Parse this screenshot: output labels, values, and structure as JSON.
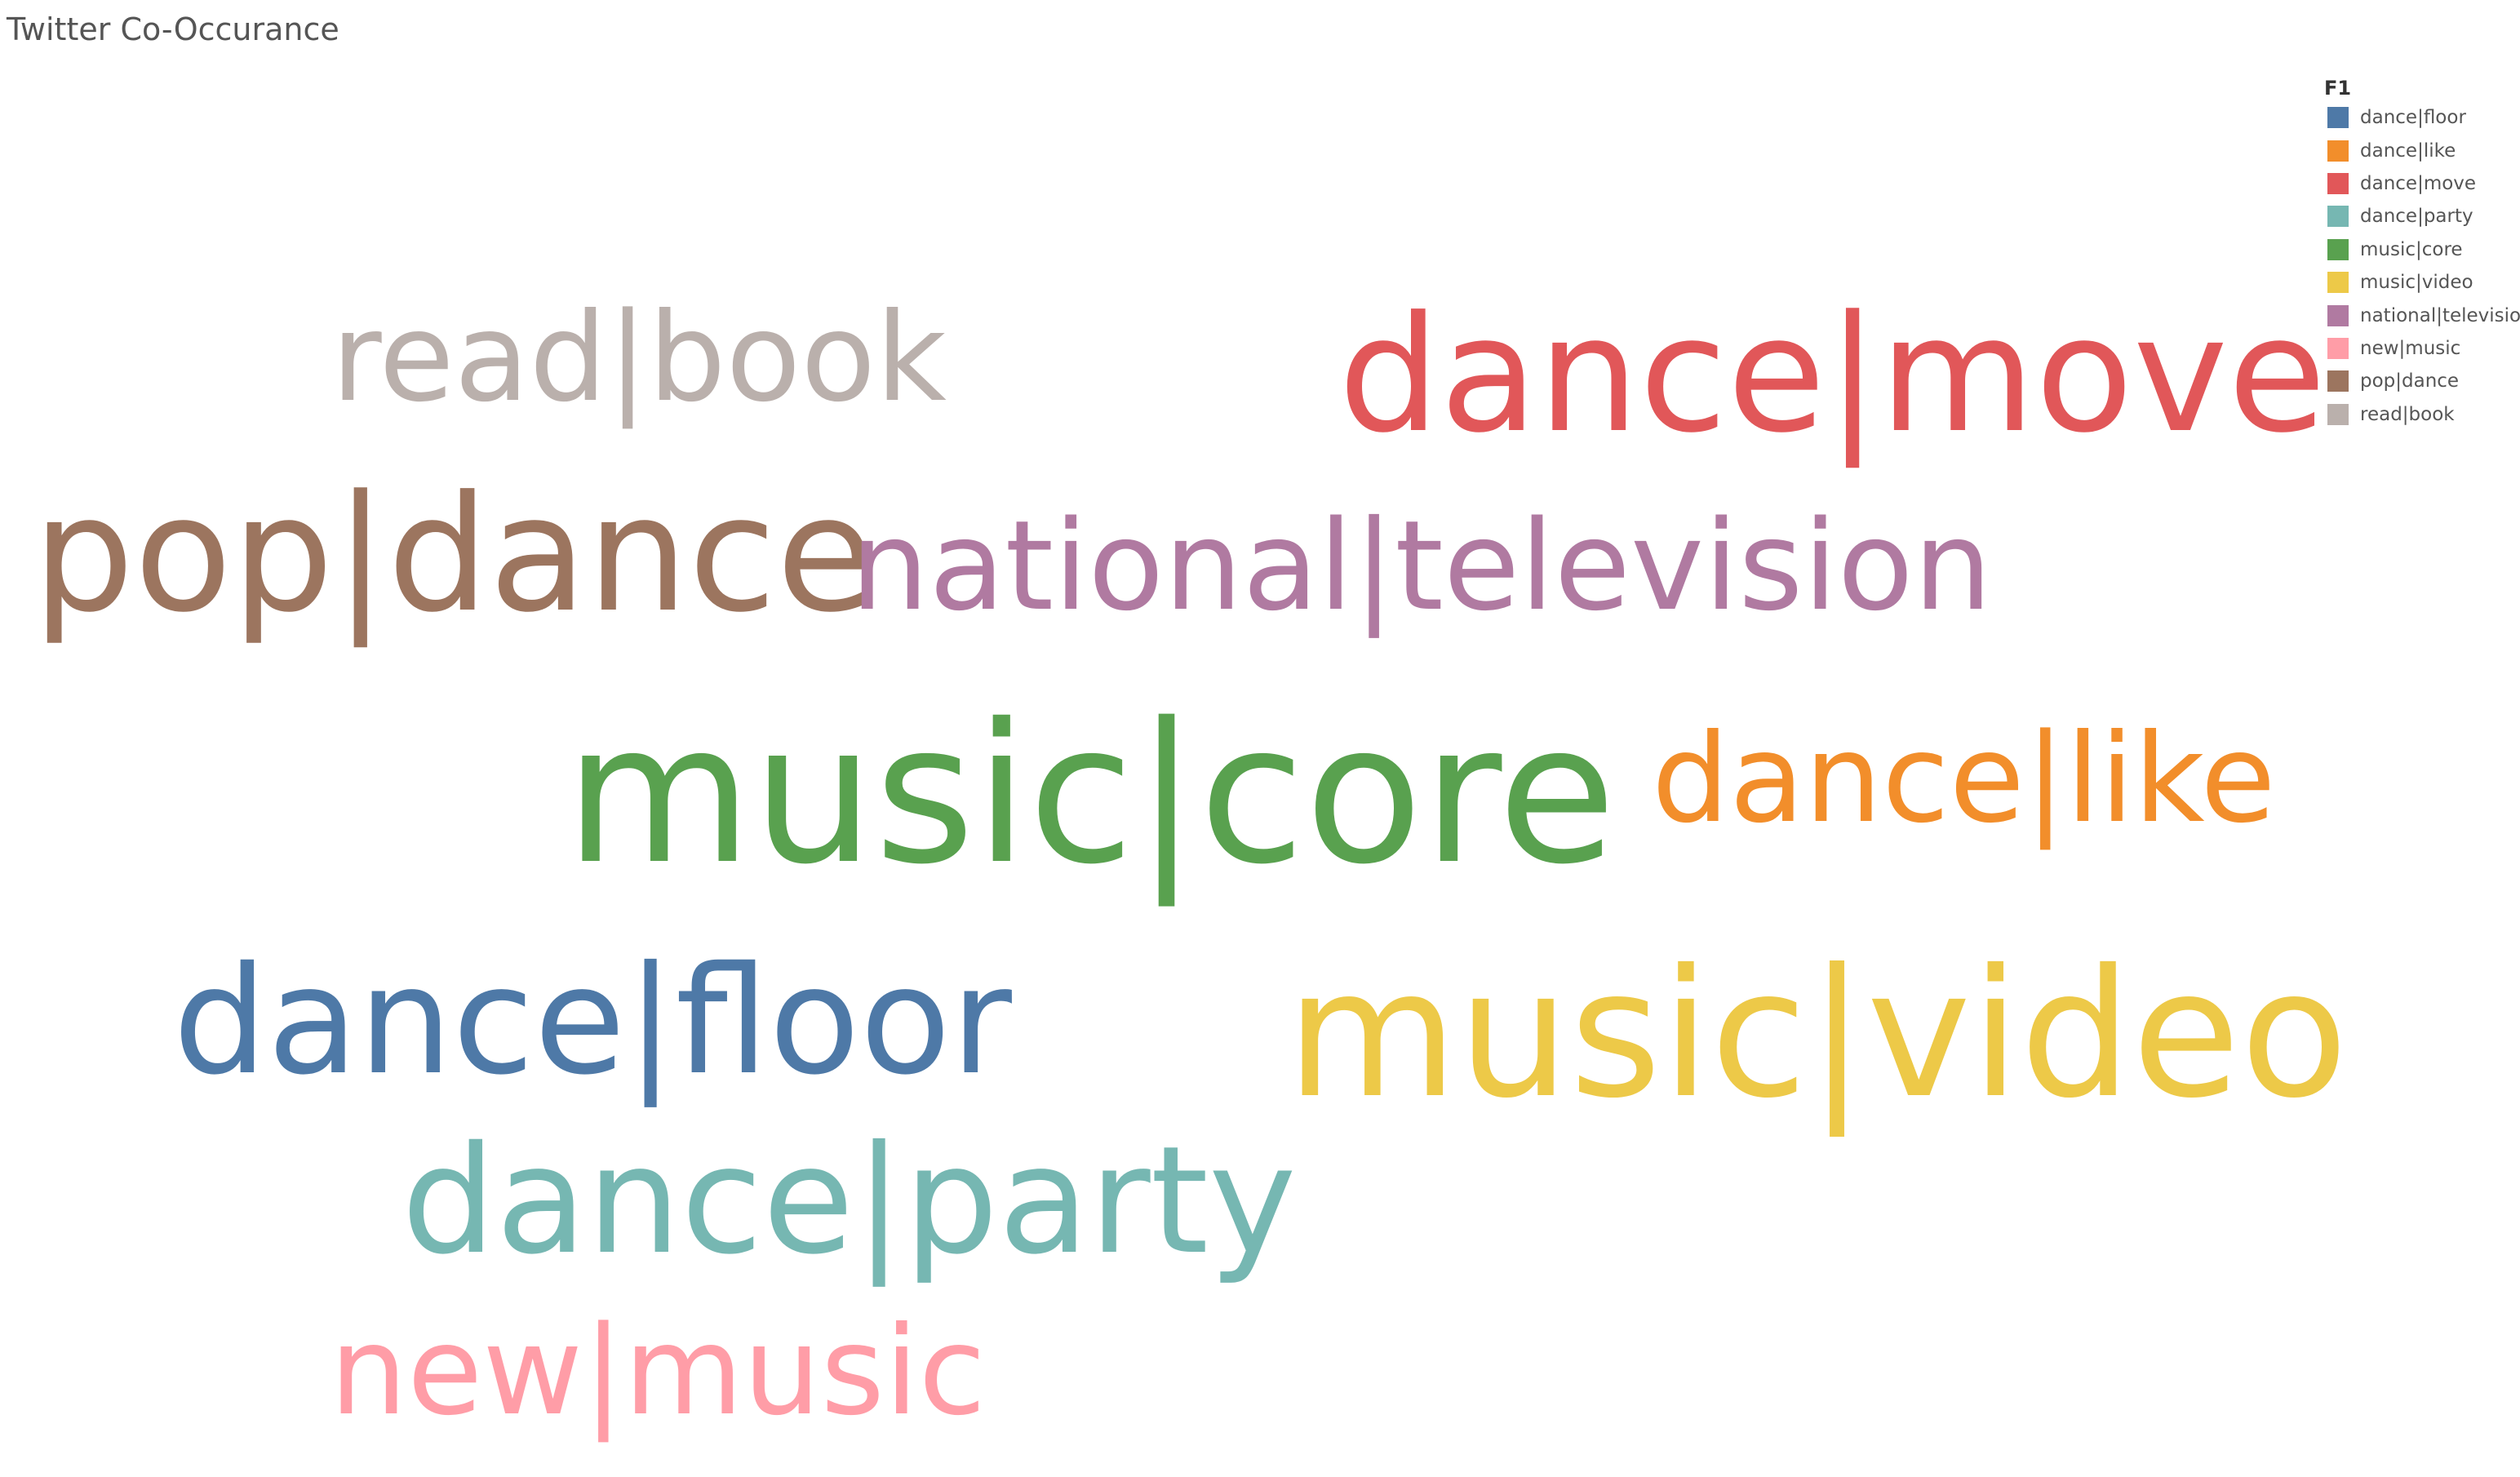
{
  "title": "Twitter Co-Occurance",
  "legend": {
    "title": "F1",
    "items": [
      {
        "label": "dance|floor",
        "color": "#4e79a7"
      },
      {
        "label": "dance|like",
        "color": "#f28e2b"
      },
      {
        "label": "dance|move",
        "color": "#e15759"
      },
      {
        "label": "dance|party",
        "color": "#76b7b2"
      },
      {
        "label": "music|core",
        "color": "#59a14f"
      },
      {
        "label": "music|video",
        "color": "#edc948"
      },
      {
        "label": "national|television",
        "color": "#b07aa1"
      },
      {
        "label": "new|music",
        "color": "#ff9da7"
      },
      {
        "label": "pop|dance",
        "color": "#9c755f"
      },
      {
        "label": "read|book",
        "color": "#bab0ac"
      }
    ]
  },
  "chart_data": {
    "type": "word-cloud",
    "legend_position": "top-right",
    "words": [
      {
        "text": "read|book",
        "color": "#bab0ac"
      },
      {
        "text": "dance|move",
        "color": "#e15759"
      },
      {
        "text": "pop|dance",
        "color": "#9c755f"
      },
      {
        "text": "national|television",
        "color": "#b07aa1"
      },
      {
        "text": "music|core",
        "color": "#59a14f"
      },
      {
        "text": "dance|like",
        "color": "#f28e2b"
      },
      {
        "text": "dance|floor",
        "color": "#4e79a7"
      },
      {
        "text": "music|video",
        "color": "#edc948"
      },
      {
        "text": "dance|party",
        "color": "#76b7b2"
      },
      {
        "text": "new|music",
        "color": "#ff9da7"
      }
    ]
  }
}
